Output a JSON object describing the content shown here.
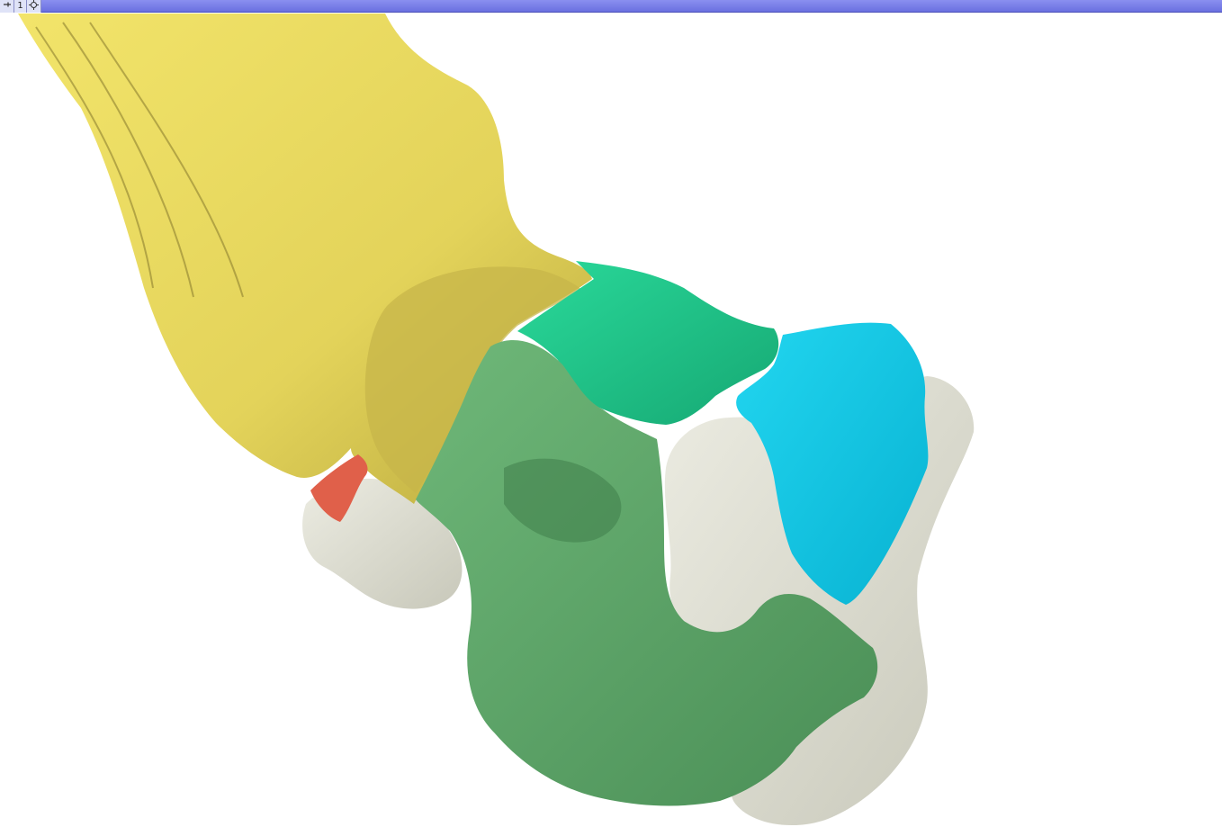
{
  "viewer": {
    "view_number": "1",
    "pin_icon": "pin-icon",
    "center_icon": "crosshair-icon",
    "accent_color": "#7378e6"
  },
  "scene": {
    "background": "#ffffff",
    "segments": [
      {
        "id": "yellow",
        "color": "#e8d85a"
      },
      {
        "id": "green",
        "color": "#5fa66a"
      },
      {
        "id": "teal",
        "color": "#1fc98c"
      },
      {
        "id": "cyan",
        "color": "#12c8e6"
      },
      {
        "id": "bone",
        "color": "#dcdcd0"
      },
      {
        "id": "red",
        "color": "#e0604a"
      }
    ]
  }
}
